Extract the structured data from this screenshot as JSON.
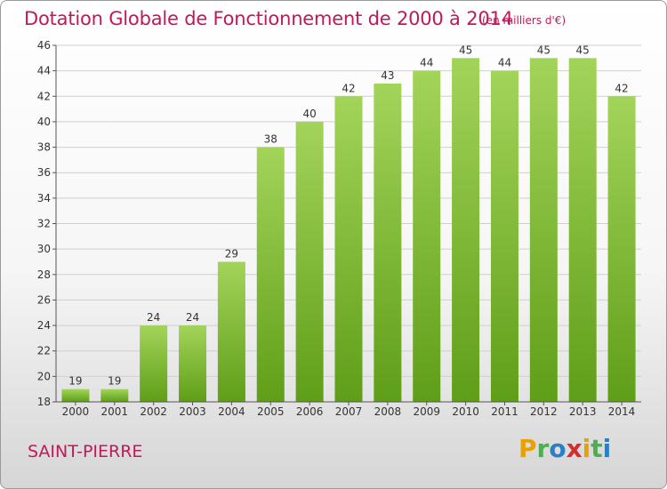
{
  "header": {
    "title": "Dotation Globale de Fonctionnement de 2000 à 2014",
    "unit_note": "(en milliers d'€)"
  },
  "footer": {
    "commune": "SAINT-PIERRE",
    "logo_text": "Proxiti"
  },
  "colors": {
    "bar_top": "#a3d45a",
    "bar_bottom": "#5f9e18",
    "title": "#c2185b",
    "grid": "#cfcfcf"
  },
  "chart_data": {
    "type": "bar",
    "title": "Dotation Globale de Fonctionnement de 2000 à 2014",
    "subtitle": "(en milliers d'€)",
    "xlabel": "",
    "ylabel": "",
    "categories": [
      "2000",
      "2001",
      "2002",
      "2003",
      "2004",
      "2005",
      "2006",
      "2007",
      "2008",
      "2009",
      "2010",
      "2011",
      "2012",
      "2013",
      "2014"
    ],
    "values": [
      19,
      19,
      24,
      24,
      29,
      38,
      40,
      42,
      43,
      44,
      45,
      44,
      45,
      45,
      42
    ],
    "ylim": [
      18,
      46
    ],
    "yticks": [
      18,
      20,
      22,
      24,
      26,
      28,
      30,
      32,
      34,
      36,
      38,
      40,
      42,
      44,
      46
    ],
    "grid": true,
    "legend": "none"
  }
}
